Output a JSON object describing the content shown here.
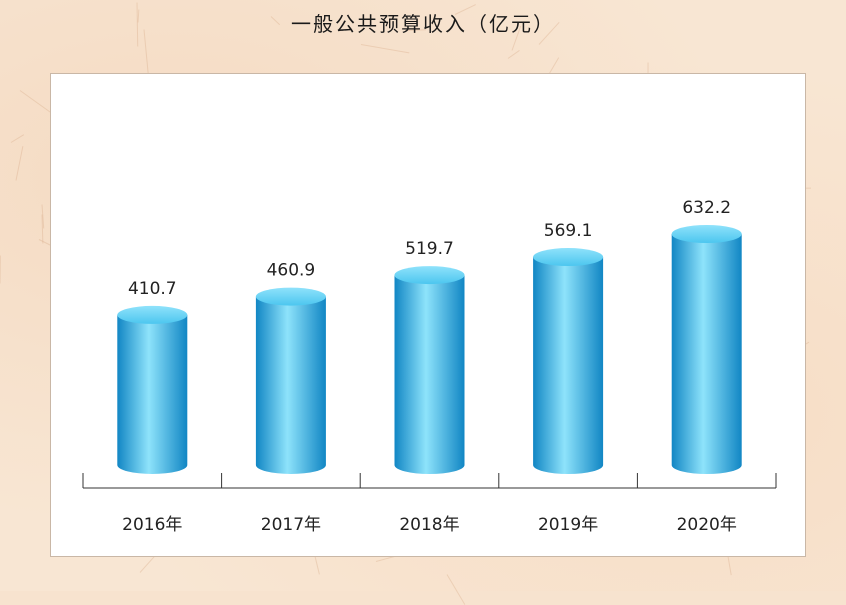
{
  "chart_data": {
    "type": "bar",
    "title": "一般公共预算收入（亿元）",
    "categories": [
      "2016年",
      "2017年",
      "2018年",
      "2019年",
      "2020年"
    ],
    "values": [
      410.7,
      460.9,
      519.7,
      569.1,
      632.2
    ],
    "value_labels": [
      "410.7",
      "460.9",
      "519.7",
      "569.1",
      "632.2"
    ],
    "xlabel": "",
    "ylabel": "",
    "ylim": [
      0,
      650
    ],
    "grid": false,
    "bar_color": "#2cb9eb",
    "bar_highlight": "#8ee3fb",
    "bar_shadow": "#1186c4"
  }
}
